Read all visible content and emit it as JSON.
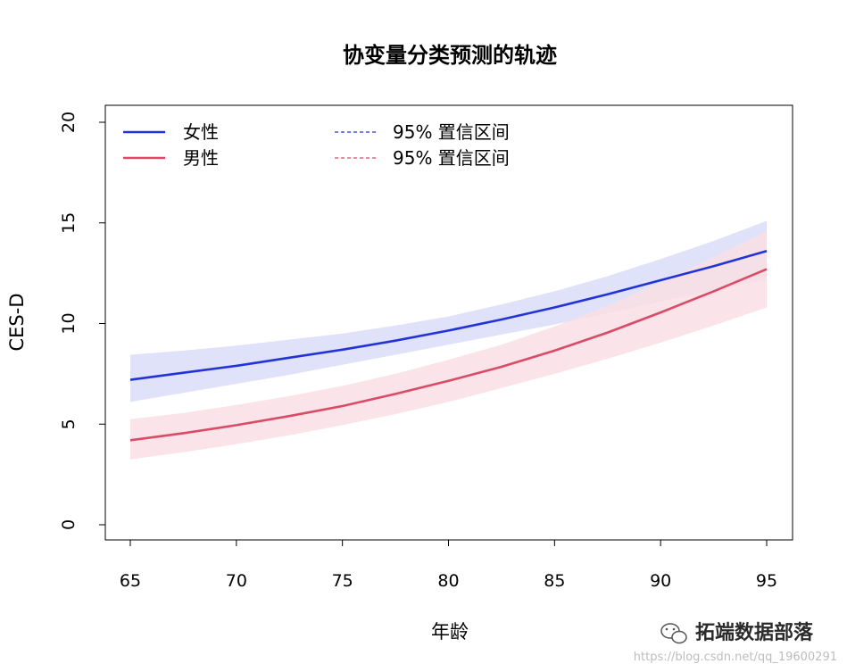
{
  "chart_data": {
    "type": "line",
    "title": "协变量分类预测的轨迹",
    "xlabel": "年龄",
    "ylabel": "CES-D",
    "xlim": [
      65,
      95
    ],
    "ylim": [
      0,
      20
    ],
    "x_ticks": [
      65,
      70,
      75,
      80,
      85,
      90,
      95
    ],
    "y_ticks": [
      0,
      5,
      10,
      15,
      20
    ],
    "grid": false,
    "legend_position": "top-left",
    "x": [
      65,
      67.5,
      70,
      72.5,
      75,
      77.5,
      80,
      82.5,
      85,
      87.5,
      90,
      92.5,
      95
    ],
    "series": [
      {
        "name": "女性",
        "color": "#2233dd",
        "band_color": "#d9ddf8",
        "values": [
          7.2,
          7.55,
          7.9,
          8.3,
          8.7,
          9.15,
          9.65,
          10.2,
          10.8,
          11.45,
          12.15,
          12.85,
          13.6
        ],
        "lower": [
          6.1,
          6.55,
          7.0,
          7.45,
          7.95,
          8.45,
          8.95,
          9.45,
          9.95,
          10.5,
          11.1,
          11.65,
          12.2
        ],
        "upper": [
          8.45,
          8.65,
          8.9,
          9.2,
          9.5,
          9.9,
          10.35,
          10.95,
          11.6,
          12.35,
          13.2,
          14.1,
          15.1
        ]
      },
      {
        "name": "男性",
        "color": "#dd4a66",
        "band_color": "#f9dfe5",
        "values": [
          4.2,
          4.55,
          4.95,
          5.4,
          5.9,
          6.5,
          7.15,
          7.85,
          8.65,
          9.55,
          10.55,
          11.6,
          12.7
        ],
        "lower": [
          3.25,
          3.6,
          4.0,
          4.45,
          4.95,
          5.5,
          6.1,
          6.8,
          7.5,
          8.25,
          9.05,
          9.9,
          10.8
        ],
        "upper": [
          5.25,
          5.55,
          5.95,
          6.4,
          6.9,
          7.5,
          8.2,
          8.95,
          9.85,
          10.9,
          12.05,
          13.3,
          14.6
        ]
      }
    ],
    "legend": [
      {
        "label": "女性",
        "style": "solid",
        "color": "#2233dd"
      },
      {
        "label": "男性",
        "style": "solid",
        "color": "#dd4a66"
      },
      {
        "label": "95% 置信区间",
        "style": "dashed",
        "color": "#2233dd"
      },
      {
        "label": "95% 置信区间",
        "style": "dashed",
        "color": "#dd4a66"
      }
    ]
  },
  "watermark": {
    "brand": "拓端数据部落",
    "url": "https://blog.csdn.net/qq_19600291",
    "icon": "wechat-icon"
  }
}
